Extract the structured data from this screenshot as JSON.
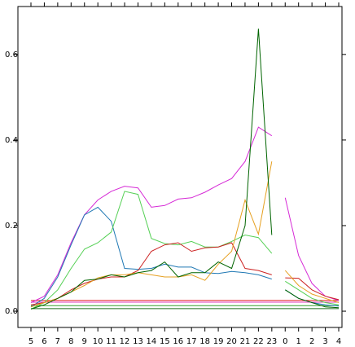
{
  "chart_data": {
    "type": "line",
    "categories": [
      "5",
      "6",
      "7",
      "8",
      "9",
      "10",
      "11",
      "12",
      "13",
      "14",
      "15",
      "16",
      "17",
      "18",
      "19",
      "20",
      "21",
      "22",
      "23",
      "0",
      "1",
      "2",
      "3",
      "4"
    ],
    "line_break_before_index": 19,
    "ylim": [
      -0.038,
      0.712
    ],
    "yticks": [
      {
        "value": 0,
        "label": "0.0"
      },
      0.2,
      0.4,
      0.6
    ],
    "series": [
      {
        "color": "#e31a1c",
        "values": [
          0.025,
          0.025,
          0.025,
          0.025,
          0.025,
          0.025,
          0.025,
          0.025,
          0.025,
          0.025,
          0.025,
          0.025,
          0.025,
          0.025,
          0.025,
          0.025,
          0.025,
          0.025,
          0.025,
          0.025,
          0.025,
          0.025,
          0.025,
          0.025
        ]
      },
      {
        "color": "#e040c0",
        "values": [
          0.021,
          0.021,
          0.021,
          0.021,
          0.021,
          0.021,
          0.021,
          0.021,
          0.021,
          0.021,
          0.021,
          0.021,
          0.021,
          0.021,
          0.021,
          0.021,
          0.021,
          0.021,
          0.021,
          0.021,
          0.021,
          0.021,
          0.021,
          0.021
        ]
      },
      {
        "color": "#33a02c",
        "values": [
          0.013,
          0.013,
          0.013,
          0.013,
          0.013,
          0.013,
          0.013,
          0.013,
          0.013,
          0.013,
          0.013,
          0.013,
          0.013,
          0.013,
          0.013,
          0.013,
          0.013,
          0.013,
          0.013,
          0.013,
          0.013,
          0.013,
          0.013,
          0.013
        ]
      },
      {
        "color": "#1b6e1b",
        "values": [
          0.006,
          0.006,
          0.006,
          0.006,
          0.006,
          0.006,
          0.006,
          0.006,
          0.006,
          0.006,
          0.006,
          0.006,
          0.006,
          0.006,
          0.006,
          0.006,
          0.006,
          0.006,
          0.006,
          0.006,
          0.006,
          0.006,
          0.006,
          0.006
        ]
      },
      {
        "color": "#d62ad6",
        "values": [
          0.02,
          0.035,
          0.085,
          0.16,
          0.225,
          0.26,
          0.28,
          0.292,
          0.288,
          0.243,
          0.247,
          0.262,
          0.265,
          0.278,
          0.295,
          0.31,
          0.35,
          0.43,
          0.41,
          0.265,
          0.13,
          0.065,
          0.035,
          0.025
        ]
      },
      {
        "color": "#1f78b4",
        "values": [
          0.01,
          0.03,
          0.08,
          0.155,
          0.225,
          0.243,
          0.21,
          0.1,
          0.098,
          0.1,
          0.11,
          0.103,
          0.103,
          0.09,
          0.088,
          0.093,
          0.09,
          0.085,
          0.075,
          0.05,
          0.03,
          0.02,
          0.015,
          0.012
        ]
      },
      {
        "color": "#55d055",
        "values": [
          0.005,
          0.02,
          0.05,
          0.1,
          0.145,
          0.16,
          0.185,
          0.28,
          0.273,
          0.17,
          0.158,
          0.155,
          0.163,
          0.15,
          0.15,
          0.163,
          0.178,
          0.172,
          0.135,
          0.07,
          0.05,
          0.03,
          0.02,
          0.015
        ]
      },
      {
        "color": "#cc2222",
        "values": [
          0.015,
          0.02,
          0.03,
          0.05,
          0.065,
          0.075,
          0.08,
          0.08,
          0.095,
          0.14,
          0.155,
          0.16,
          0.14,
          0.148,
          0.15,
          0.16,
          0.1,
          0.095,
          0.085,
          0.078,
          0.077,
          0.05,
          0.035,
          0.027
        ]
      },
      {
        "color": "#e6a020",
        "values": [
          0.01,
          0.02,
          0.03,
          0.045,
          0.06,
          0.078,
          0.085,
          0.085,
          0.09,
          0.085,
          0.08,
          0.08,
          0.085,
          0.072,
          0.11,
          0.14,
          0.26,
          0.18,
          0.35,
          0.095,
          0.06,
          0.04,
          0.03,
          0.02
        ]
      },
      {
        "color": "#006400",
        "values": [
          0.005,
          0.015,
          0.03,
          0.045,
          0.072,
          0.075,
          0.085,
          0.08,
          0.09,
          0.095,
          0.115,
          0.08,
          0.09,
          0.09,
          0.115,
          0.1,
          0.2,
          0.66,
          0.178,
          0.05,
          0.03,
          0.02,
          0.01,
          0.008
        ]
      }
    ]
  }
}
